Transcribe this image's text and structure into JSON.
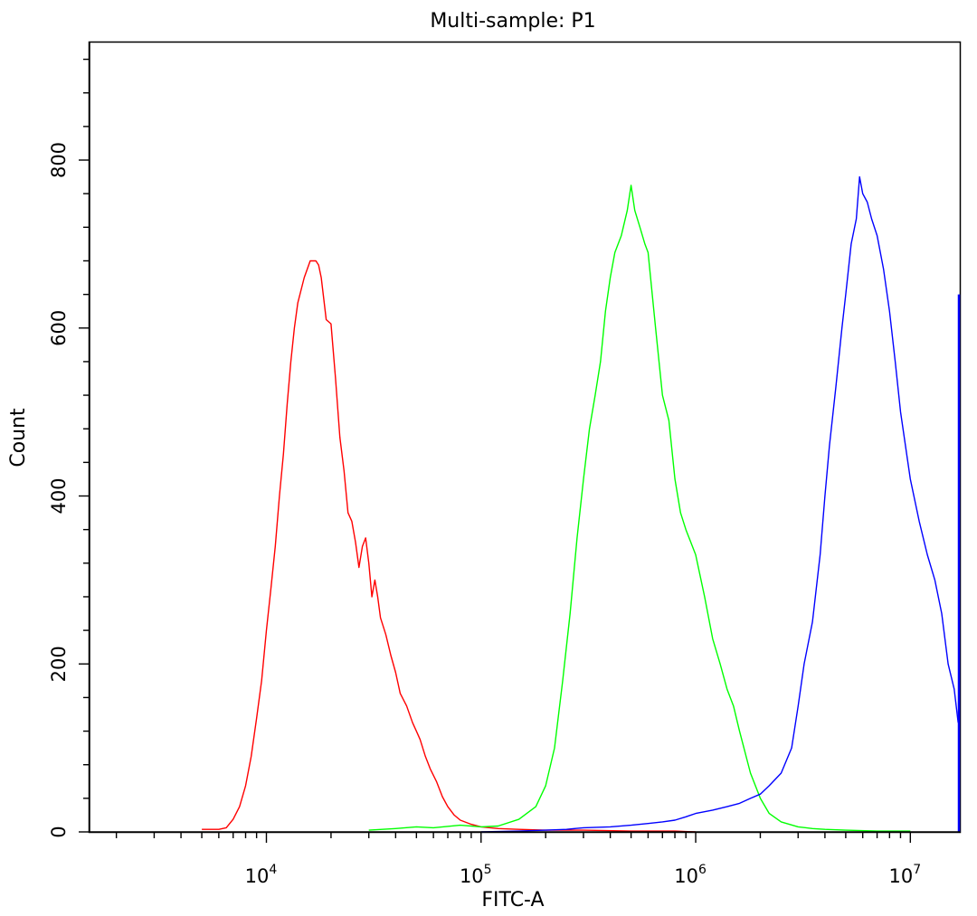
{
  "chart_data": {
    "type": "line",
    "title": "Multi-sample: P1",
    "xlabel": "FITC-A",
    "ylabel": "Count",
    "x_scale": "log",
    "xlim": [
      1500,
      17000000
    ],
    "ylim": [
      0,
      940
    ],
    "x_ticks": [
      {
        "value": 10000,
        "base": "10",
        "exp": "4"
      },
      {
        "value": 100000,
        "base": "10",
        "exp": "5"
      },
      {
        "value": 1000000,
        "base": "10",
        "exp": "6"
      },
      {
        "value": 10000000,
        "base": "10",
        "exp": "7"
      }
    ],
    "y_ticks": [
      0,
      200,
      400,
      600,
      800
    ],
    "grid": false,
    "legend": "none",
    "series": [
      {
        "color": "#ff0000",
        "x": [
          5000,
          6000,
          6500,
          7000,
          7500,
          8000,
          8500,
          9000,
          9500,
          10000,
          10500,
          11000,
          11500,
          12000,
          12500,
          13000,
          13500,
          14000,
          15000,
          16000,
          17000,
          17500,
          18000,
          19000,
          20000,
          21000,
          22000,
          23000,
          24000,
          25000,
          26000,
          27000,
          28000,
          29000,
          30000,
          31000,
          32000,
          33000,
          34000,
          36000,
          38000,
          40000,
          42000,
          45000,
          48000,
          50000,
          52000,
          55000,
          58000,
          62000,
          66000,
          70000,
          75000,
          80000,
          90000,
          100000,
          120000,
          150000,
          200000,
          300000,
          500000,
          800000,
          1000000
        ],
        "y": [
          3,
          3,
          5,
          15,
          30,
          55,
          90,
          135,
          180,
          240,
          290,
          340,
          400,
          450,
          510,
          560,
          600,
          630,
          660,
          680,
          680,
          675,
          660,
          610,
          605,
          540,
          470,
          430,
          380,
          370,
          345,
          315,
          340,
          350,
          320,
          280,
          300,
          280,
          255,
          235,
          210,
          190,
          165,
          150,
          130,
          120,
          110,
          90,
          75,
          60,
          42,
          30,
          20,
          14,
          9,
          6,
          4,
          3,
          2,
          2,
          1,
          1,
          0
        ]
      },
      {
        "color": "#00ff00",
        "x": [
          30000,
          40000,
          50000,
          60000,
          80000,
          100000,
          120000,
          150000,
          180000,
          200000,
          220000,
          240000,
          260000,
          280000,
          300000,
          320000,
          340000,
          360000,
          380000,
          400000,
          420000,
          450000,
          480000,
          500000,
          520000,
          550000,
          580000,
          600000,
          650000,
          700000,
          750000,
          800000,
          850000,
          900000,
          1000000,
          1100000,
          1200000,
          1300000,
          1400000,
          1500000,
          1600000,
          1800000,
          2000000,
          2200000,
          2500000,
          3000000,
          3500000,
          4000000,
          5000000,
          7000000,
          10000000
        ],
        "y": [
          2,
          4,
          6,
          5,
          8,
          6,
          7,
          15,
          30,
          55,
          100,
          180,
          260,
          350,
          420,
          480,
          520,
          560,
          620,
          660,
          690,
          710,
          740,
          770,
          740,
          720,
          700,
          690,
          600,
          520,
          490,
          420,
          380,
          360,
          330,
          280,
          230,
          200,
          170,
          150,
          120,
          70,
          40,
          22,
          12,
          6,
          4,
          3,
          2,
          1,
          1
        ]
      },
      {
        "color": "#0000ff",
        "x": [
          100000,
          150000,
          200000,
          250000,
          300000,
          400000,
          500000,
          600000,
          700000,
          800000,
          900000,
          1000000,
          1200000,
          1400000,
          1600000,
          1800000,
          2000000,
          2200000,
          2500000,
          2800000,
          3000000,
          3200000,
          3500000,
          3800000,
          4000000,
          4200000,
          4500000,
          4800000,
          5000000,
          5300000,
          5600000,
          5800000,
          6000000,
          6300000,
          6600000,
          7000000,
          7500000,
          8000000,
          8500000,
          9000000,
          10000000,
          11000000,
          12000000,
          13000000,
          14000000,
          15000000,
          16000000,
          16700000
        ],
        "y": [
          0,
          1,
          2,
          3,
          5,
          6,
          8,
          10,
          12,
          14,
          18,
          22,
          26,
          30,
          34,
          40,
          45,
          55,
          70,
          100,
          150,
          200,
          250,
          330,
          400,
          460,
          530,
          600,
          640,
          700,
          730,
          780,
          760,
          750,
          730,
          710,
          670,
          620,
          560,
          500,
          420,
          370,
          330,
          300,
          260,
          200,
          170,
          130
        ]
      }
    ],
    "right_edge_bar": {
      "color": "#0000ff",
      "value": 640
    }
  }
}
